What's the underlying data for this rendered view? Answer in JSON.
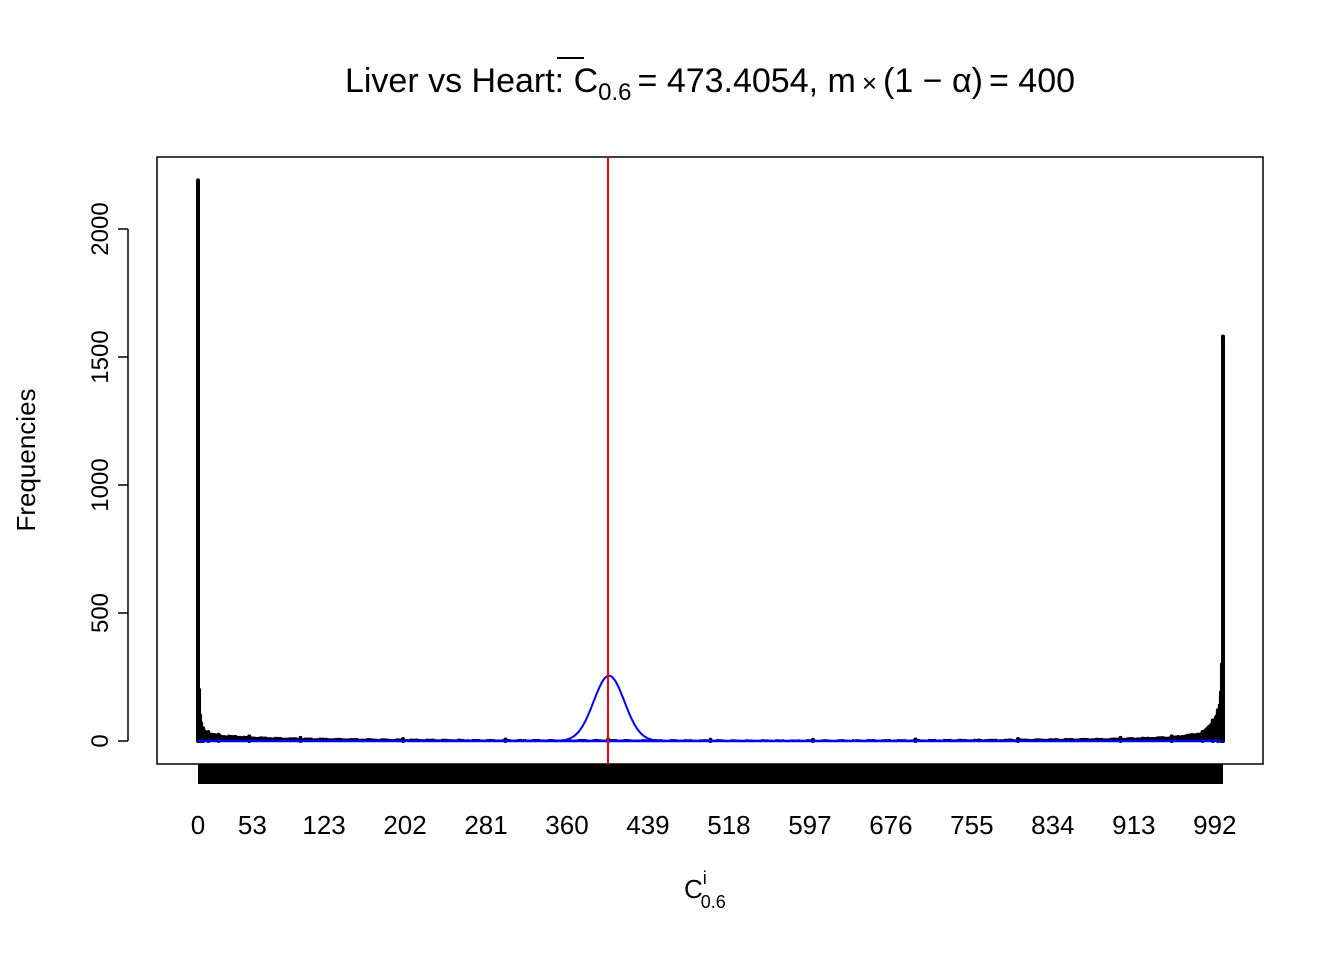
{
  "chart_data": {
    "type": "bar",
    "title": {
      "prefix": "Liver vs Heart: ",
      "stat_symbol": "C",
      "stat_subscript": "0.6",
      "stat_value": "= 473.4054, m",
      "times": "×",
      "paren_expr": "(1 − α)",
      "rhs": "= 400"
    },
    "xlabel": {
      "symbol": "C",
      "superscript": "i",
      "subscript": "0.6"
    },
    "ylabel": "Frequencies",
    "xlim": [
      0,
      1000
    ],
    "ylim": [
      0,
      2190
    ],
    "x_ticks": [
      0,
      53,
      123,
      202,
      281,
      360,
      439,
      518,
      597,
      676,
      755,
      834,
      913,
      992
    ],
    "y_ticks": [
      0,
      500,
      1000,
      1500,
      2000
    ],
    "histogram": {
      "x": [
        0,
        1,
        2,
        3,
        5,
        10,
        20,
        50,
        100,
        200,
        300,
        400,
        500,
        600,
        700,
        800,
        900,
        950,
        980,
        990,
        995,
        998,
        999,
        1000
      ],
      "frequency": [
        2190,
        200,
        100,
        70,
        50,
        35,
        25,
        18,
        12,
        8,
        6,
        6,
        5,
        5,
        6,
        8,
        12,
        18,
        35,
        80,
        120,
        190,
        300,
        1580
      ]
    },
    "normal_curve": {
      "mean": 401,
      "sd": 15,
      "peak": 255,
      "color": "#0000ff"
    },
    "vline": {
      "x": 400,
      "color": "#ff0000"
    },
    "rug": true,
    "grid": false,
    "colors": {
      "bars": "#000000",
      "curve": "#0000ff",
      "vline": "#ff0000"
    }
  }
}
